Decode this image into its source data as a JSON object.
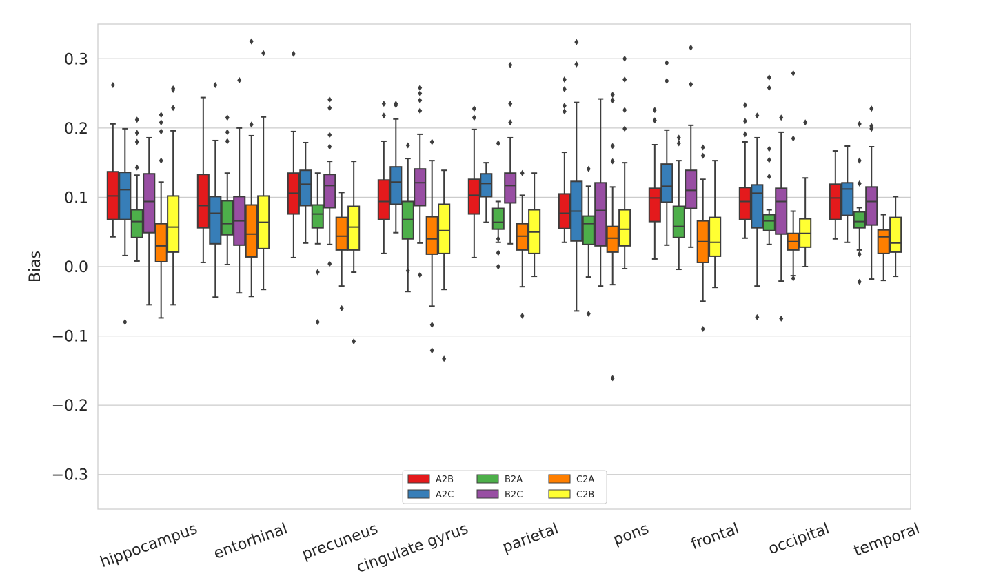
{
  "chart_data": {
    "type": "box",
    "title": "",
    "xlabel": "",
    "ylabel": "Bias",
    "ylim": [
      -0.35,
      0.35
    ],
    "yticks": [
      0.3,
      0.2,
      0.1,
      0.0,
      -0.1,
      -0.2,
      -0.3
    ],
    "ytick_labels": [
      "0.3",
      "0.2",
      "0.1",
      "0.0",
      "−0.1",
      "−0.2",
      "−0.3"
    ],
    "grid": true,
    "legend_position": "bottom-center",
    "categories": [
      "hippocampus",
      "entorhinal",
      "precuneus",
      "cingulate gyrus",
      "parietal",
      "pons",
      "frontal",
      "occipital",
      "temporal"
    ],
    "series": [
      {
        "name": "A2B",
        "color": "#e41a1c",
        "boxes": [
          {
            "whislo": 0.043,
            "q1": 0.068,
            "med": 0.102,
            "q3": 0.137,
            "whishi": 0.206,
            "fliers": [
              0.262
            ]
          },
          {
            "whislo": 0.006,
            "q1": 0.056,
            "med": 0.088,
            "q3": 0.133,
            "whishi": 0.244,
            "fliers": []
          },
          {
            "whislo": 0.013,
            "q1": 0.076,
            "med": 0.106,
            "q3": 0.135,
            "whishi": 0.195,
            "fliers": [
              0.307
            ]
          },
          {
            "whislo": 0.019,
            "q1": 0.068,
            "med": 0.094,
            "q3": 0.125,
            "whishi": 0.181,
            "fliers": [
              0.218,
              0.235
            ]
          },
          {
            "whislo": 0.013,
            "q1": 0.076,
            "med": 0.103,
            "q3": 0.126,
            "whishi": 0.198,
            "fliers": [
              0.215,
              0.228
            ]
          },
          {
            "whislo": 0.035,
            "q1": 0.055,
            "med": 0.077,
            "q3": 0.105,
            "whishi": 0.165,
            "fliers": [
              0.224,
              0.232,
              0.256,
              0.27
            ]
          },
          {
            "whislo": 0.011,
            "q1": 0.065,
            "med": 0.099,
            "q3": 0.113,
            "whishi": 0.176,
            "fliers": [
              0.211,
              0.226
            ]
          },
          {
            "whislo": 0.041,
            "q1": 0.068,
            "med": 0.094,
            "q3": 0.114,
            "whishi": 0.18,
            "fliers": [
              0.191,
              0.21,
              0.233
            ]
          },
          {
            "whislo": 0.04,
            "q1": 0.068,
            "med": 0.099,
            "q3": 0.119,
            "whishi": 0.167,
            "fliers": []
          }
        ]
      },
      {
        "name": "A2C",
        "color": "#377eb8",
        "boxes": [
          {
            "whislo": 0.016,
            "q1": 0.068,
            "med": 0.111,
            "q3": 0.136,
            "whishi": 0.199,
            "fliers": [
              -0.08
            ]
          },
          {
            "whislo": -0.044,
            "q1": 0.033,
            "med": 0.077,
            "q3": 0.101,
            "whishi": 0.182,
            "fliers": [
              0.262
            ]
          },
          {
            "whislo": 0.034,
            "q1": 0.088,
            "med": 0.119,
            "q3": 0.139,
            "whishi": 0.179,
            "fliers": []
          },
          {
            "whislo": 0.049,
            "q1": 0.09,
            "med": 0.122,
            "q3": 0.144,
            "whishi": 0.213,
            "fliers": [
              0.233,
              0.235
            ]
          },
          {
            "whislo": 0.064,
            "q1": 0.101,
            "med": 0.12,
            "q3": 0.134,
            "whishi": 0.15,
            "fliers": []
          },
          {
            "whislo": -0.064,
            "q1": 0.037,
            "med": 0.08,
            "q3": 0.123,
            "whishi": 0.237,
            "fliers": [
              0.292,
              0.324
            ]
          },
          {
            "whislo": 0.031,
            "q1": 0.093,
            "med": 0.116,
            "q3": 0.148,
            "whishi": 0.197,
            "fliers": [
              0.268,
              0.294
            ]
          },
          {
            "whislo": -0.028,
            "q1": 0.056,
            "med": 0.106,
            "q3": 0.118,
            "whishi": 0.186,
            "fliers": [
              -0.073,
              0.218
            ]
          },
          {
            "whislo": 0.035,
            "q1": 0.074,
            "med": 0.112,
            "q3": 0.121,
            "whishi": 0.174,
            "fliers": []
          }
        ]
      },
      {
        "name": "B2A",
        "color": "#4daf4a",
        "boxes": [
          {
            "whislo": 0.008,
            "q1": 0.042,
            "med": 0.065,
            "q3": 0.082,
            "whishi": 0.132,
            "fliers": [
              0.143,
              0.18,
              0.193,
              0.212
            ]
          },
          {
            "whislo": 0.003,
            "q1": 0.046,
            "med": 0.062,
            "q3": 0.095,
            "whishi": 0.135,
            "fliers": [
              0.181,
              0.194,
              0.215
            ]
          },
          {
            "whislo": 0.033,
            "q1": 0.056,
            "med": 0.076,
            "q3": 0.089,
            "whishi": 0.135,
            "fliers": [
              -0.08,
              -0.008
            ]
          },
          {
            "whislo": -0.036,
            "q1": 0.04,
            "med": 0.068,
            "q3": 0.094,
            "whishi": 0.156,
            "fliers": [
              -0.006,
              0.175
            ]
          },
          {
            "whislo": 0.035,
            "q1": 0.054,
            "med": 0.064,
            "q3": 0.084,
            "whishi": 0.094,
            "fliers": [
              0.0,
              0.02,
              0.04,
              0.178
            ]
          },
          {
            "whislo": -0.015,
            "q1": 0.032,
            "med": 0.062,
            "q3": 0.073,
            "whishi": 0.116,
            "fliers": [
              -0.068,
              0.141
            ]
          },
          {
            "whislo": -0.004,
            "q1": 0.042,
            "med": 0.058,
            "q3": 0.087,
            "whishi": 0.153,
            "fliers": [
              0.178,
              0.186
            ]
          },
          {
            "whislo": 0.032,
            "q1": 0.052,
            "med": 0.066,
            "q3": 0.075,
            "whishi": 0.082,
            "fliers": [
              0.13,
              0.154,
              0.17,
              0.258,
              0.273
            ]
          },
          {
            "whislo": 0.024,
            "q1": 0.056,
            "med": 0.065,
            "q3": 0.079,
            "whishi": 0.085,
            "fliers": [
              -0.022,
              0.018,
              0.12,
              0.153,
              0.206
            ]
          }
        ]
      },
      {
        "name": "B2C",
        "color": "#984ea3",
        "boxes": [
          {
            "whislo": -0.055,
            "q1": 0.049,
            "med": 0.094,
            "q3": 0.134,
            "whishi": 0.186,
            "fliers": []
          },
          {
            "whislo": -0.038,
            "q1": 0.031,
            "med": 0.066,
            "q3": 0.101,
            "whishi": 0.2,
            "fliers": [
              0.269
            ]
          },
          {
            "whislo": 0.032,
            "q1": 0.085,
            "med": 0.117,
            "q3": 0.133,
            "whishi": 0.152,
            "fliers": [
              0.004,
              0.173,
              0.19,
              0.229,
              0.241
            ]
          },
          {
            "whislo": 0.034,
            "q1": 0.088,
            "med": 0.121,
            "q3": 0.141,
            "whishi": 0.191,
            "fliers": [
              -0.012,
              0.225,
              0.24,
              0.25,
              0.258
            ]
          },
          {
            "whislo": 0.033,
            "q1": 0.092,
            "med": 0.117,
            "q3": 0.135,
            "whishi": 0.186,
            "fliers": [
              0.208,
              0.235,
              0.291
            ]
          },
          {
            "whislo": -0.028,
            "q1": 0.03,
            "med": 0.081,
            "q3": 0.121,
            "whishi": 0.242,
            "fliers": []
          },
          {
            "whislo": 0.028,
            "q1": 0.084,
            "med": 0.11,
            "q3": 0.139,
            "whishi": 0.204,
            "fliers": [
              0.263,
              0.316
            ]
          },
          {
            "whislo": -0.021,
            "q1": 0.047,
            "med": 0.094,
            "q3": 0.113,
            "whishi": 0.194,
            "fliers": [
              -0.075,
              0.215
            ]
          },
          {
            "whislo": -0.018,
            "q1": 0.06,
            "med": 0.094,
            "q3": 0.115,
            "whishi": 0.173,
            "fliers": [
              0.199,
              0.203,
              0.228
            ]
          }
        ]
      },
      {
        "name": "C2A",
        "color": "#ff7f00",
        "boxes": [
          {
            "whislo": -0.074,
            "q1": 0.007,
            "med": 0.03,
            "q3": 0.062,
            "whishi": 0.122,
            "fliers": [
              0.153,
              0.195,
              0.208,
              0.219
            ]
          },
          {
            "whislo": -0.043,
            "q1": 0.014,
            "med": 0.047,
            "q3": 0.089,
            "whishi": 0.189,
            "fliers": [
              0.205,
              0.325
            ]
          },
          {
            "whislo": -0.028,
            "q1": 0.024,
            "med": 0.044,
            "q3": 0.071,
            "whishi": 0.107,
            "fliers": [
              -0.06
            ]
          },
          {
            "whislo": -0.057,
            "q1": 0.018,
            "med": 0.04,
            "q3": 0.072,
            "whishi": 0.153,
            "fliers": [
              -0.121,
              -0.084,
              0.18
            ]
          },
          {
            "whislo": -0.029,
            "q1": 0.024,
            "med": 0.044,
            "q3": 0.062,
            "whishi": 0.103,
            "fliers": [
              -0.071,
              0.135
            ]
          },
          {
            "whislo": -0.026,
            "q1": 0.021,
            "med": 0.041,
            "q3": 0.058,
            "whishi": 0.115,
            "fliers": [
              -0.161,
              0.152,
              0.174,
              0.24,
              0.248
            ]
          },
          {
            "whislo": -0.05,
            "q1": 0.006,
            "med": 0.036,
            "q3": 0.066,
            "whishi": 0.126,
            "fliers": [
              -0.09,
              0.16,
              0.172
            ]
          },
          {
            "whislo": -0.013,
            "q1": 0.024,
            "med": 0.036,
            "q3": 0.048,
            "whishi": 0.08,
            "fliers": [
              -0.017,
              0.185,
              0.279
            ]
          },
          {
            "whislo": -0.02,
            "q1": 0.019,
            "med": 0.043,
            "q3": 0.053,
            "whishi": 0.075,
            "fliers": []
          }
        ]
      },
      {
        "name": "C2B",
        "color": "#ffff33",
        "boxes": [
          {
            "whislo": -0.055,
            "q1": 0.021,
            "med": 0.057,
            "q3": 0.102,
            "whishi": 0.196,
            "fliers": [
              0.229,
              0.255,
              0.257
            ]
          },
          {
            "whislo": -0.033,
            "q1": 0.026,
            "med": 0.064,
            "q3": 0.102,
            "whishi": 0.216,
            "fliers": [
              0.308
            ]
          },
          {
            "whislo": -0.008,
            "q1": 0.024,
            "med": 0.057,
            "q3": 0.087,
            "whishi": 0.152,
            "fliers": [
              -0.108
            ]
          },
          {
            "whislo": -0.033,
            "q1": 0.019,
            "med": 0.052,
            "q3": 0.09,
            "whishi": 0.139,
            "fliers": [
              -0.133
            ]
          },
          {
            "whislo": -0.014,
            "q1": 0.019,
            "med": 0.05,
            "q3": 0.082,
            "whishi": 0.135,
            "fliers": []
          },
          {
            "whislo": -0.003,
            "q1": 0.03,
            "med": 0.054,
            "q3": 0.082,
            "whishi": 0.15,
            "fliers": [
              0.199,
              0.226,
              0.27,
              0.3
            ]
          },
          {
            "whislo": -0.03,
            "q1": 0.015,
            "med": 0.035,
            "q3": 0.071,
            "whishi": 0.153,
            "fliers": []
          },
          {
            "whislo": 0.0,
            "q1": 0.028,
            "med": 0.048,
            "q3": 0.069,
            "whishi": 0.128,
            "fliers": [
              0.208
            ]
          },
          {
            "whislo": -0.014,
            "q1": 0.021,
            "med": 0.034,
            "q3": 0.071,
            "whishi": 0.101,
            "fliers": []
          }
        ]
      }
    ]
  }
}
